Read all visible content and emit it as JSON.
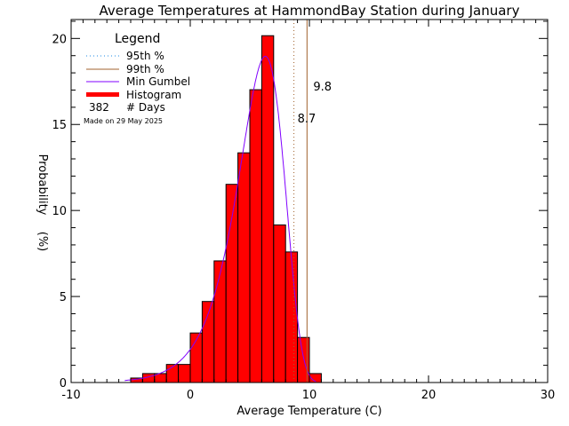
{
  "chart_data": {
    "type": "bar",
    "title": "Average Temperatures at HammondBay Station during January",
    "xlabel": "Average Temperature (C)",
    "ylabel": "Probability",
    "ylabel_unit": "(%)",
    "xlim": [
      -10,
      30
    ],
    "ylim": [
      0,
      21.1
    ],
    "xticks": [
      -10,
      0,
      10,
      20,
      30
    ],
    "yticks": [
      0,
      5,
      10,
      15,
      20
    ],
    "bin_width": 1,
    "bin_starts": [
      -5,
      -4,
      -3,
      -2,
      -1,
      0,
      1,
      2,
      3,
      4,
      5,
      6,
      7,
      8,
      9,
      10
    ],
    "values": [
      0.26,
      0.52,
      0.52,
      1.05,
      1.05,
      2.88,
      4.71,
      7.07,
      11.52,
      13.35,
      17.02,
      20.16,
      9.16,
      7.59,
      2.62,
      0.52
    ],
    "gumbel": {
      "mu": 6.3,
      "beta": 1.94,
      "range": [
        -5.5,
        10.6
      ]
    },
    "p95": {
      "value": 8.7,
      "label": "8.7"
    },
    "p99": {
      "value": 9.8,
      "label": "9.8"
    },
    "legend": {
      "title": "Legend",
      "items": [
        "95th %",
        "99th %",
        "Min Gumbel",
        "Histogram"
      ],
      "days_count": "382",
      "days_label": "# Days",
      "made_on": "Made on 29 May 2025",
      "placement": "top-left"
    },
    "colors": {
      "bar": "#ff0000",
      "gumbel": "#8000ff",
      "p95": "#1e88e5",
      "p99": "#a0622d",
      "made": "#bbbbbb"
    }
  }
}
